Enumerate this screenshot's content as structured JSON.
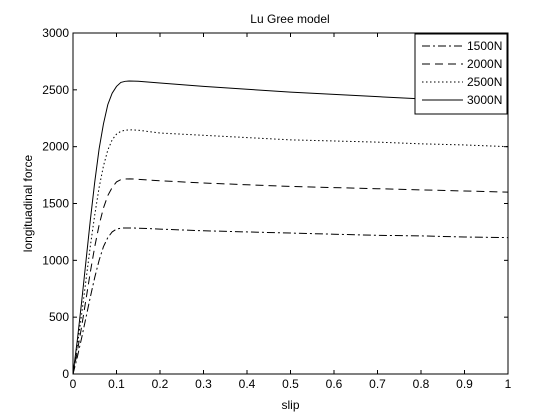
{
  "chart_data": {
    "type": "line",
    "title": "Lu Gree model",
    "xlabel": "slip",
    "ylabel": "longituadinal force",
    "xlim": [
      0,
      1
    ],
    "ylim": [
      0,
      3000
    ],
    "xticks": [
      0,
      0.1,
      0.2,
      0.3,
      0.4,
      0.5,
      0.6,
      0.7,
      0.8,
      0.9,
      1
    ],
    "xtick_labels": [
      "0",
      "0.1",
      "0.2",
      "0.3",
      "0.4",
      "0.5",
      "0.6",
      "0.7",
      "0.8",
      "0.9",
      "1"
    ],
    "yticks": [
      0,
      500,
      1000,
      1500,
      2000,
      2500,
      3000
    ],
    "ytick_labels": [
      "0",
      "500",
      "1000",
      "1500",
      "2000",
      "2500",
      "3000"
    ],
    "grid": false,
    "legend_position": "top-right",
    "series": [
      {
        "name": "1500N",
        "line_style": "dash-dot",
        "x": [
          0,
          0.01,
          0.02,
          0.03,
          0.04,
          0.05,
          0.06,
          0.07,
          0.08,
          0.09,
          0.1,
          0.11,
          0.12,
          0.13,
          0.15,
          0.2,
          0.3,
          0.4,
          0.5,
          0.6,
          0.7,
          0.8,
          0.9,
          1.0
        ],
        "y": [
          0,
          150,
          320,
          500,
          680,
          850,
          1000,
          1120,
          1200,
          1250,
          1275,
          1283,
          1285,
          1285,
          1283,
          1275,
          1260,
          1250,
          1240,
          1230,
          1220,
          1215,
          1205,
          1200
        ]
      },
      {
        "name": "2000N",
        "line_style": "dashed",
        "x": [
          0,
          0.01,
          0.02,
          0.03,
          0.04,
          0.05,
          0.06,
          0.07,
          0.08,
          0.09,
          0.1,
          0.11,
          0.12,
          0.13,
          0.15,
          0.2,
          0.3,
          0.4,
          0.5,
          0.6,
          0.7,
          0.8,
          0.9,
          1.0
        ],
        "y": [
          0,
          200,
          420,
          660,
          900,
          1120,
          1310,
          1460,
          1570,
          1640,
          1690,
          1710,
          1715,
          1717,
          1713,
          1700,
          1680,
          1665,
          1650,
          1640,
          1630,
          1620,
          1610,
          1600
        ]
      },
      {
        "name": "2500N",
        "line_style": "dotted",
        "x": [
          0,
          0.01,
          0.02,
          0.03,
          0.04,
          0.05,
          0.06,
          0.07,
          0.08,
          0.09,
          0.1,
          0.11,
          0.12,
          0.13,
          0.15,
          0.2,
          0.3,
          0.4,
          0.5,
          0.6,
          0.7,
          0.8,
          0.9,
          1.0
        ],
        "y": [
          0,
          250,
          530,
          830,
          1130,
          1400,
          1640,
          1830,
          1970,
          2060,
          2110,
          2135,
          2145,
          2148,
          2145,
          2120,
          2100,
          2080,
          2060,
          2050,
          2040,
          2025,
          2015,
          2000
        ]
      },
      {
        "name": "3000N",
        "line_style": "solid",
        "x": [
          0,
          0.01,
          0.02,
          0.03,
          0.04,
          0.05,
          0.06,
          0.07,
          0.08,
          0.09,
          0.1,
          0.11,
          0.12,
          0.13,
          0.15,
          0.2,
          0.3,
          0.4,
          0.5,
          0.6,
          0.7,
          0.8,
          0.9,
          0.93
        ],
        "y": [
          0,
          300,
          640,
          1000,
          1360,
          1690,
          1980,
          2200,
          2370,
          2470,
          2530,
          2565,
          2575,
          2578,
          2575,
          2560,
          2530,
          2505,
          2480,
          2460,
          2440,
          2420,
          2405,
          2400
        ]
      }
    ]
  }
}
